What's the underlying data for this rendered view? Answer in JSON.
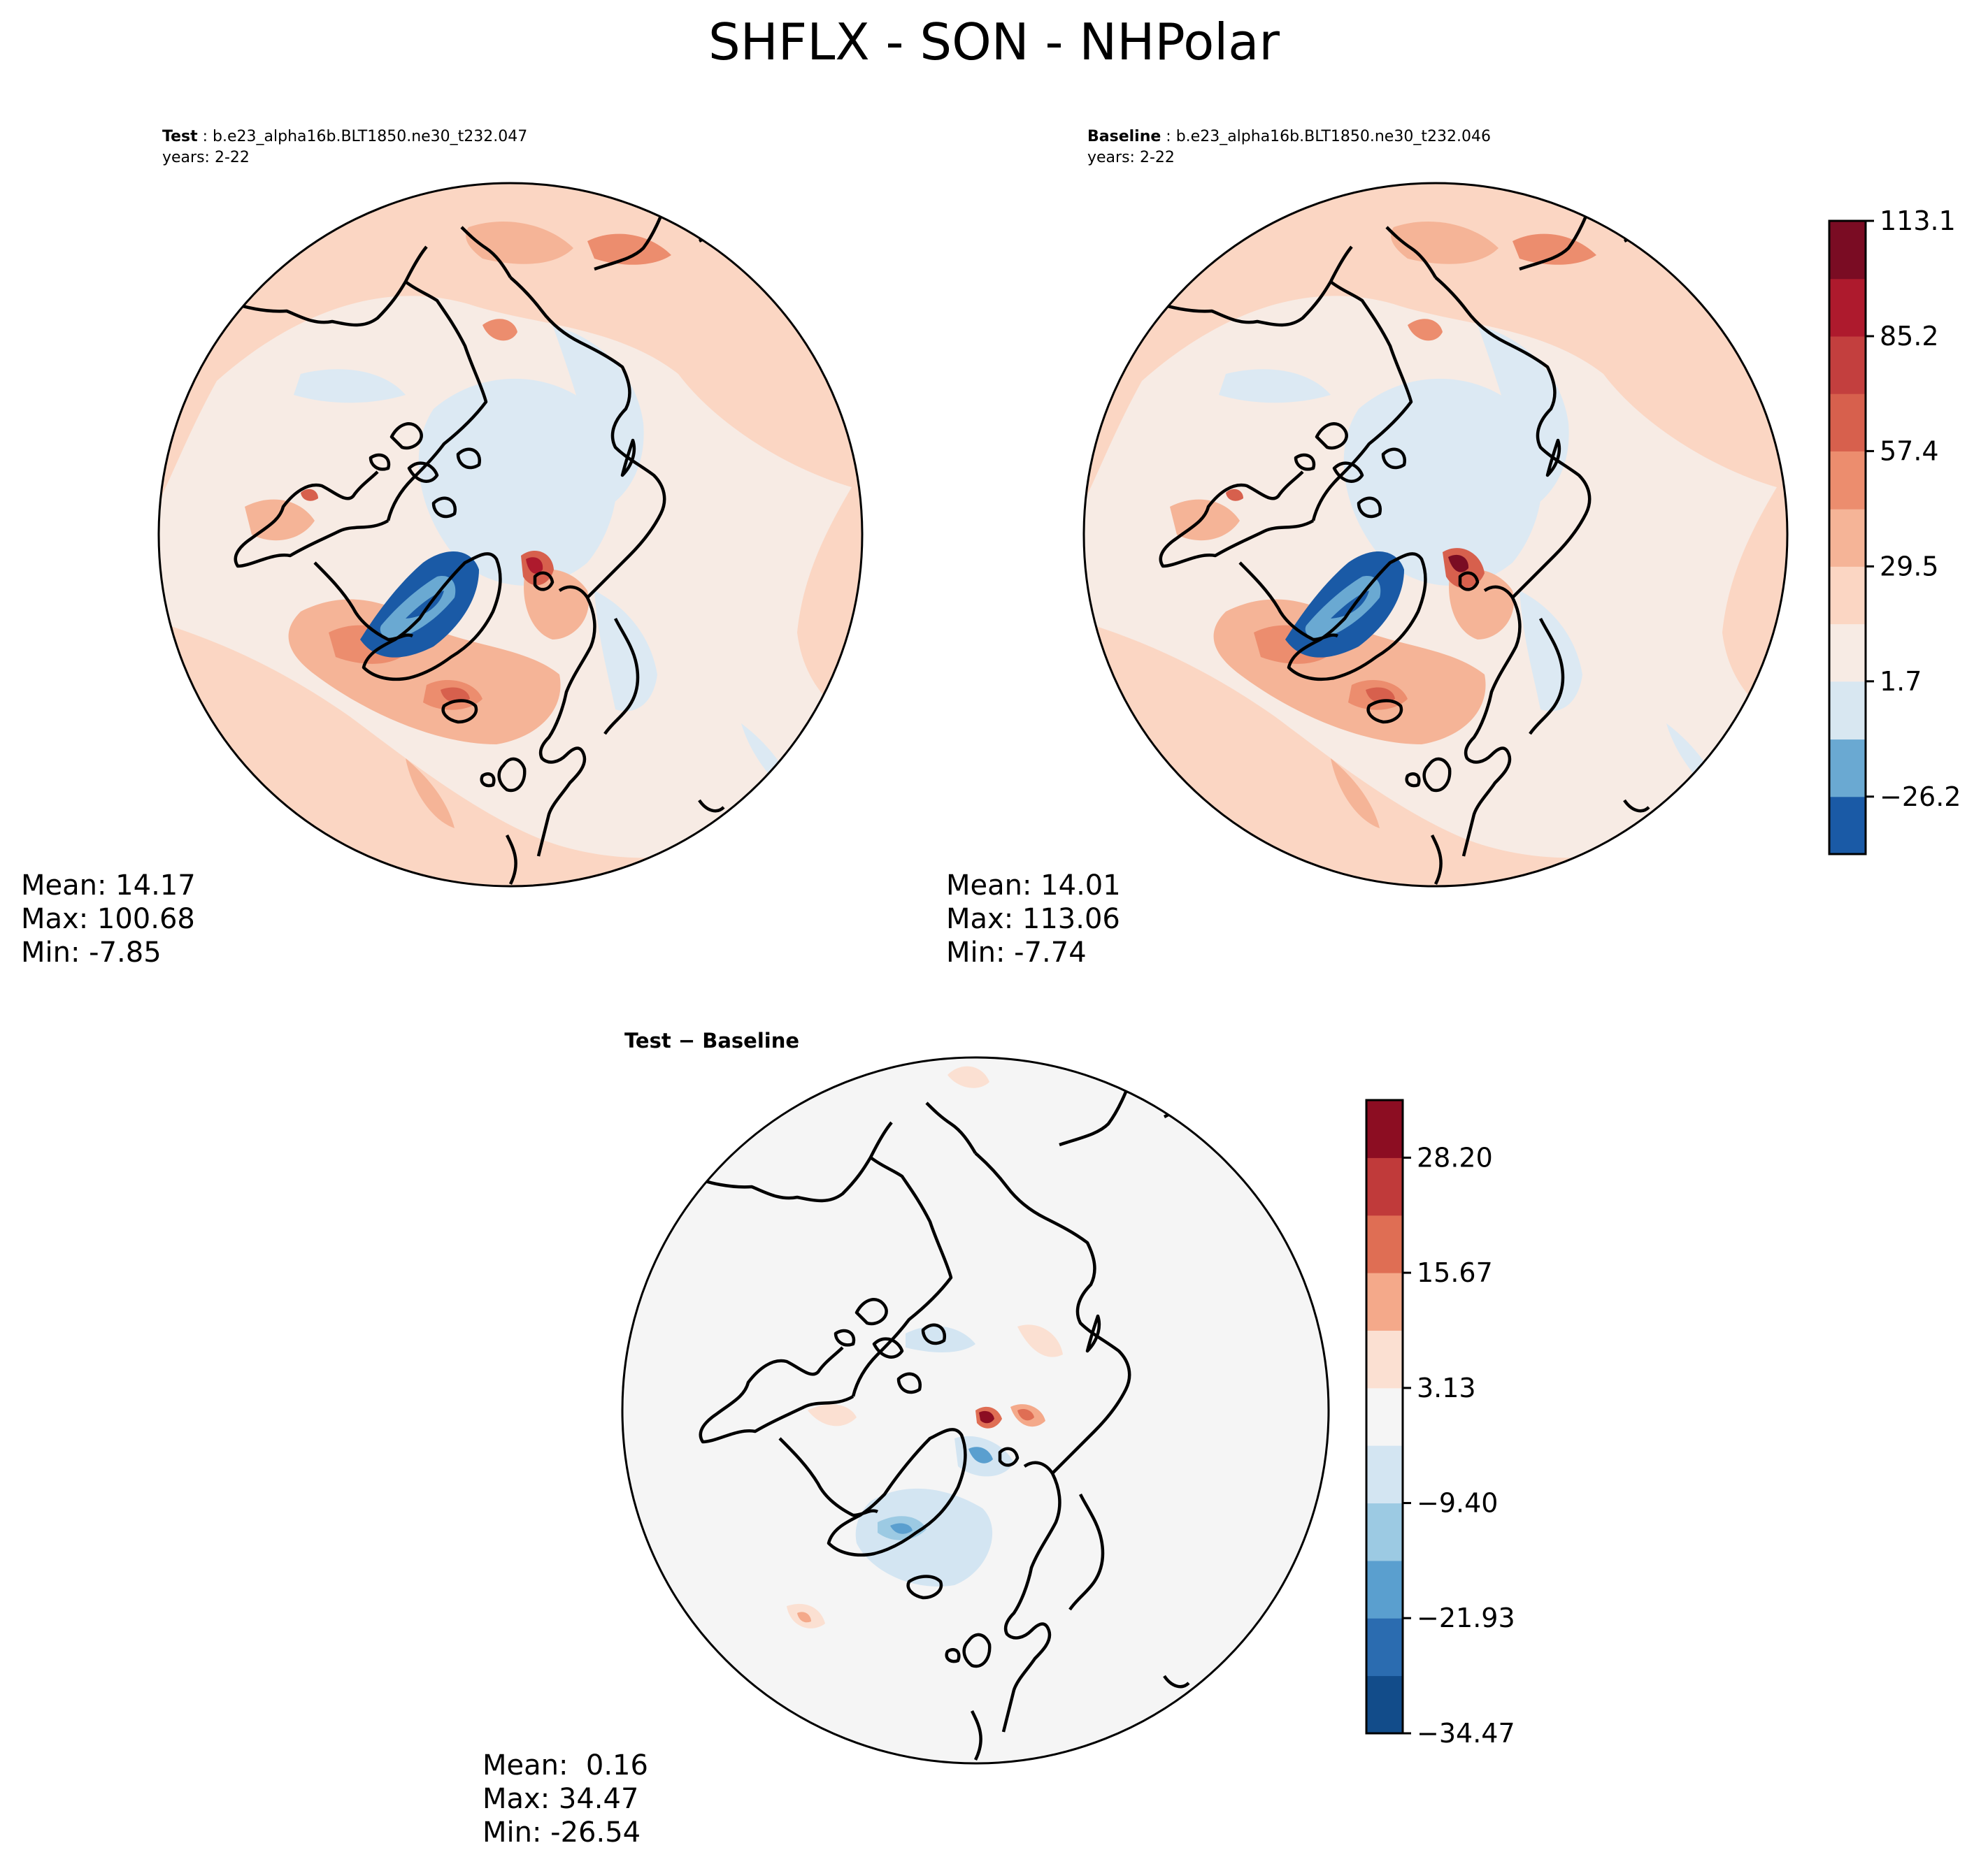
{
  "figure": {
    "title": "SHFLX - SON - NHPolar"
  },
  "colors": {
    "land_outline": "#000000",
    "ocean_neutral": "#f7f7f7",
    "shflx_ramp": [
      "#2166ac",
      "#67a9cf",
      "#d1e5f0",
      "#f7f7f7",
      "#fddbc7",
      "#f4a582",
      "#d6604d",
      "#b2182b",
      "#67001f"
    ]
  },
  "chart_data": [
    {
      "type": "heatmap",
      "panel": "test",
      "label_prefix": "Test",
      "case_name": "b.e23_alpha16b.BLT1850.ne30_t232.047",
      "years": "years: 2-22",
      "projection": "north polar stereographic",
      "stats": {
        "mean": "Mean: 14.17",
        "max": "Max: 100.68",
        "min": "Min: -7.85"
      }
    },
    {
      "type": "heatmap",
      "panel": "baseline",
      "label_prefix": "Baseline",
      "case_name": "b.e23_alpha16b.BLT1850.ne30_t232.046",
      "years": "years: 2-22",
      "projection": "north polar stereographic",
      "stats": {
        "mean": "Mean: 14.01",
        "max": "Max: 113.06",
        "min": "Min: -7.74"
      },
      "colorbar": {
        "levels": [
          -40.1,
          -26.2,
          -12.3,
          1.7,
          15.6,
          29.5,
          43.4,
          57.4,
          71.3,
          85.2,
          99.1,
          113.1
        ],
        "colors": [
          "#1a5aa6",
          "#6aa9d2",
          "#d8e7f1",
          "#f7ebe4",
          "#fbd6c3",
          "#f5b497",
          "#ec8d6e",
          "#d7604d",
          "#c33f3e",
          "#ae1a2d",
          "#7a0c23"
        ],
        "tick_labels": [
          "113.1",
          "85.2",
          "57.4",
          "29.5",
          "1.7",
          "−26.2"
        ]
      }
    },
    {
      "type": "heatmap",
      "panel": "difference",
      "title": "Test − Baseline",
      "projection": "north polar stereographic",
      "stats": {
        "mean": "Mean:  0.16",
        "max": "Max: 34.47",
        "min": "Min: -26.54"
      },
      "colorbar": {
        "levels": [
          -34.47,
          -28.2,
          -21.93,
          -15.67,
          -9.4,
          -3.13,
          3.13,
          9.4,
          15.67,
          21.93,
          28.2,
          34.47
        ],
        "colors": [
          "#124c8a",
          "#2b6cb0",
          "#5a9fcf",
          "#9ccae3",
          "#d3e5f2",
          "#f5f5f5",
          "#fbe0d2",
          "#f4a98a",
          "#df6e54",
          "#c03a3a",
          "#8c0d22"
        ],
        "tick_labels": [
          "28.20",
          "15.67",
          "3.13",
          "−9.40",
          "−21.93",
          "−34.47"
        ]
      }
    }
  ]
}
